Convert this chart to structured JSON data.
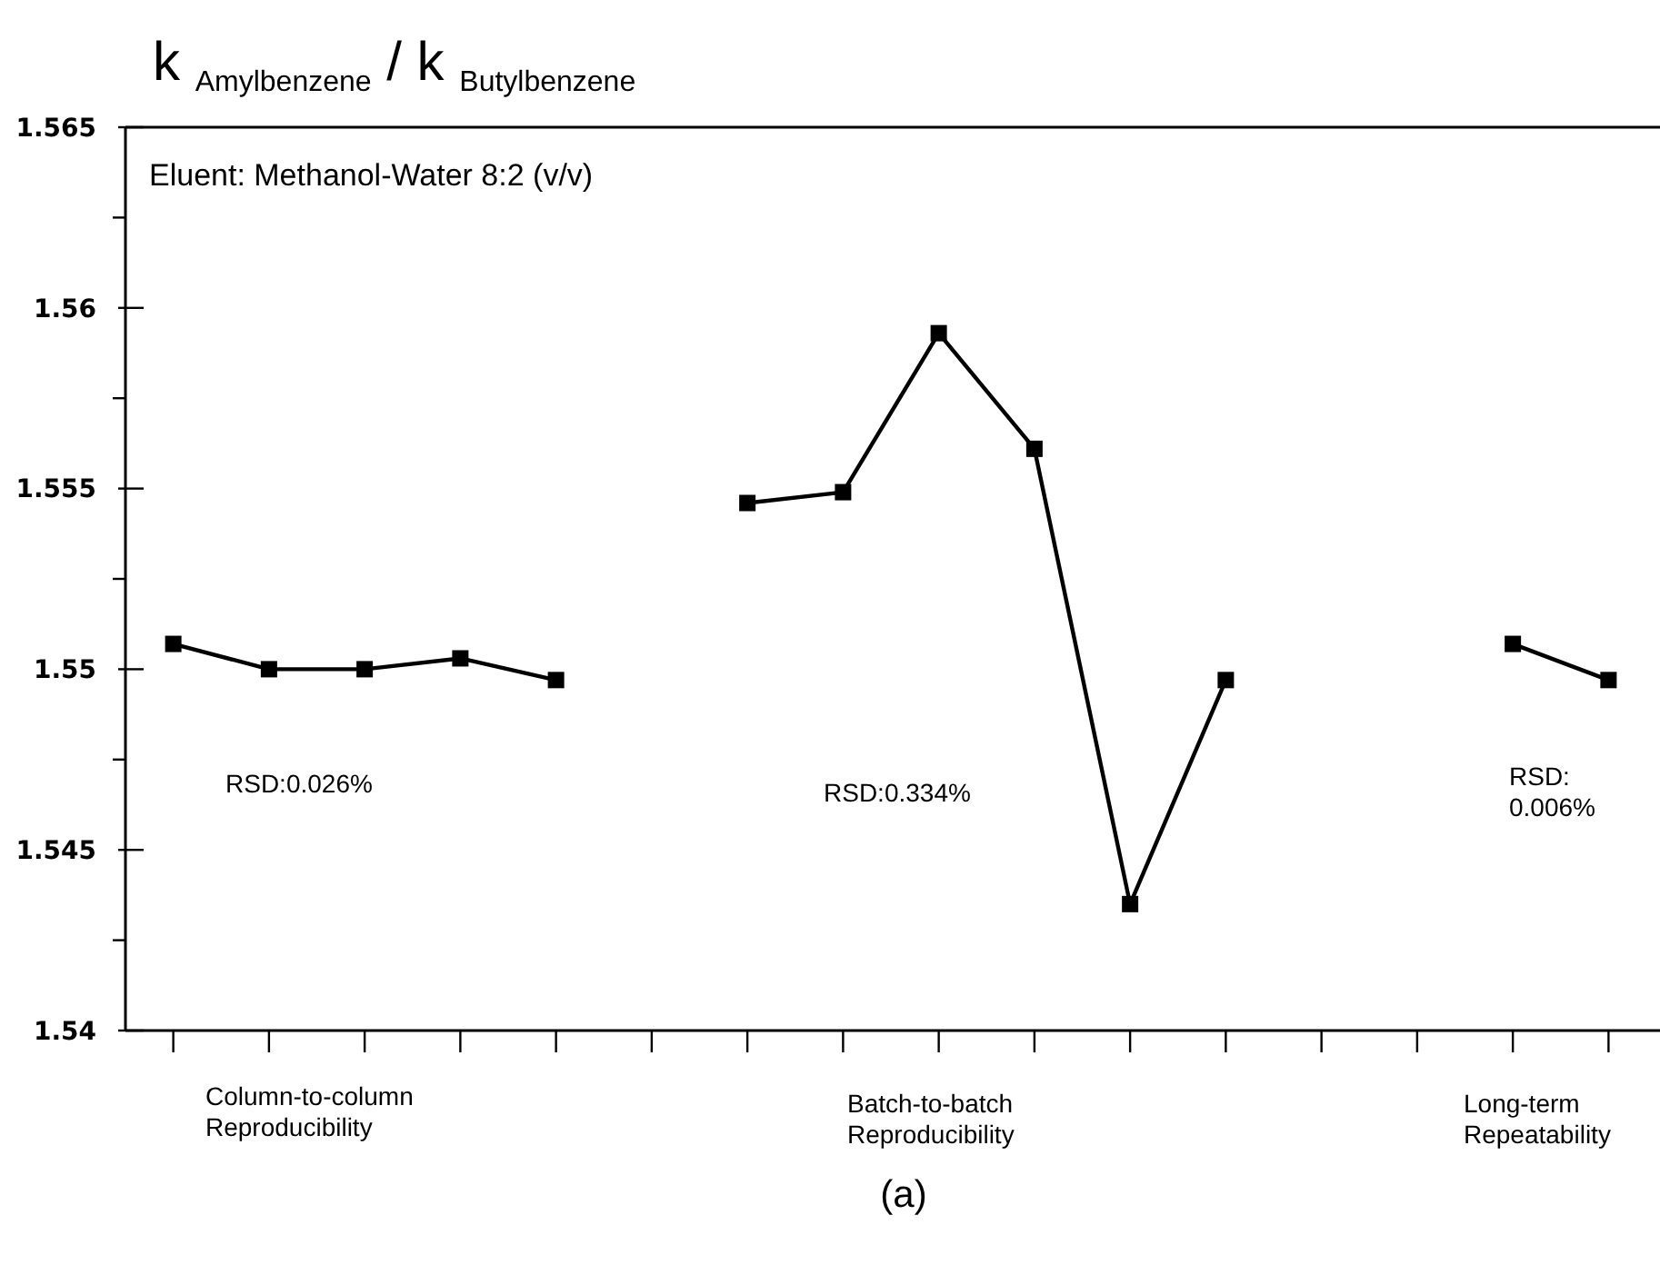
{
  "chart_data": {
    "type": "line",
    "ylabel": "k $_{Amylbenzene}$ / k $_{Butylbenzene}$",
    "categories": [
      null,
      null,
      null,
      null,
      null,
      null,
      null,
      null,
      null,
      null,
      null,
      null,
      null,
      null,
      null,
      null
    ],
    "values": [
      1.5507,
      1.55,
      1.55,
      1.5503,
      1.5497,
      null,
      1.5546,
      1.5549,
      1.5593,
      1.5561,
      1.5435,
      1.5497,
      null,
      null,
      1.5507,
      1.5497
    ],
    "color": "#000000",
    "marker": "square",
    "line_style": "solid",
    "ylim": [
      1.54,
      1.565
    ],
    "yticks": [
      1.54,
      {
        "value": 1.5425,
        "label": null
      },
      1.545,
      {
        "value": 1.5475,
        "label": null
      },
      1.55,
      {
        "value": 1.5525,
        "label": null
      },
      1.555,
      {
        "value": 1.5575,
        "label": null
      },
      1.56,
      {
        "value": 1.5625,
        "label": null
      },
      1.565
    ],
    "tick_labels": "y",
    "grid": false,
    "annotations": [
      "Eluent: Methanol-Water 8:2 (v/v)",
      "RSD:0.026%",
      "RSD:0.334%",
      "RSD:\n0.006%",
      "Column-to-column\nReproducibility",
      "Batch-to-batch\nReproducibility",
      "Long-term\nRepeatability",
      "(a)"
    ]
  }
}
